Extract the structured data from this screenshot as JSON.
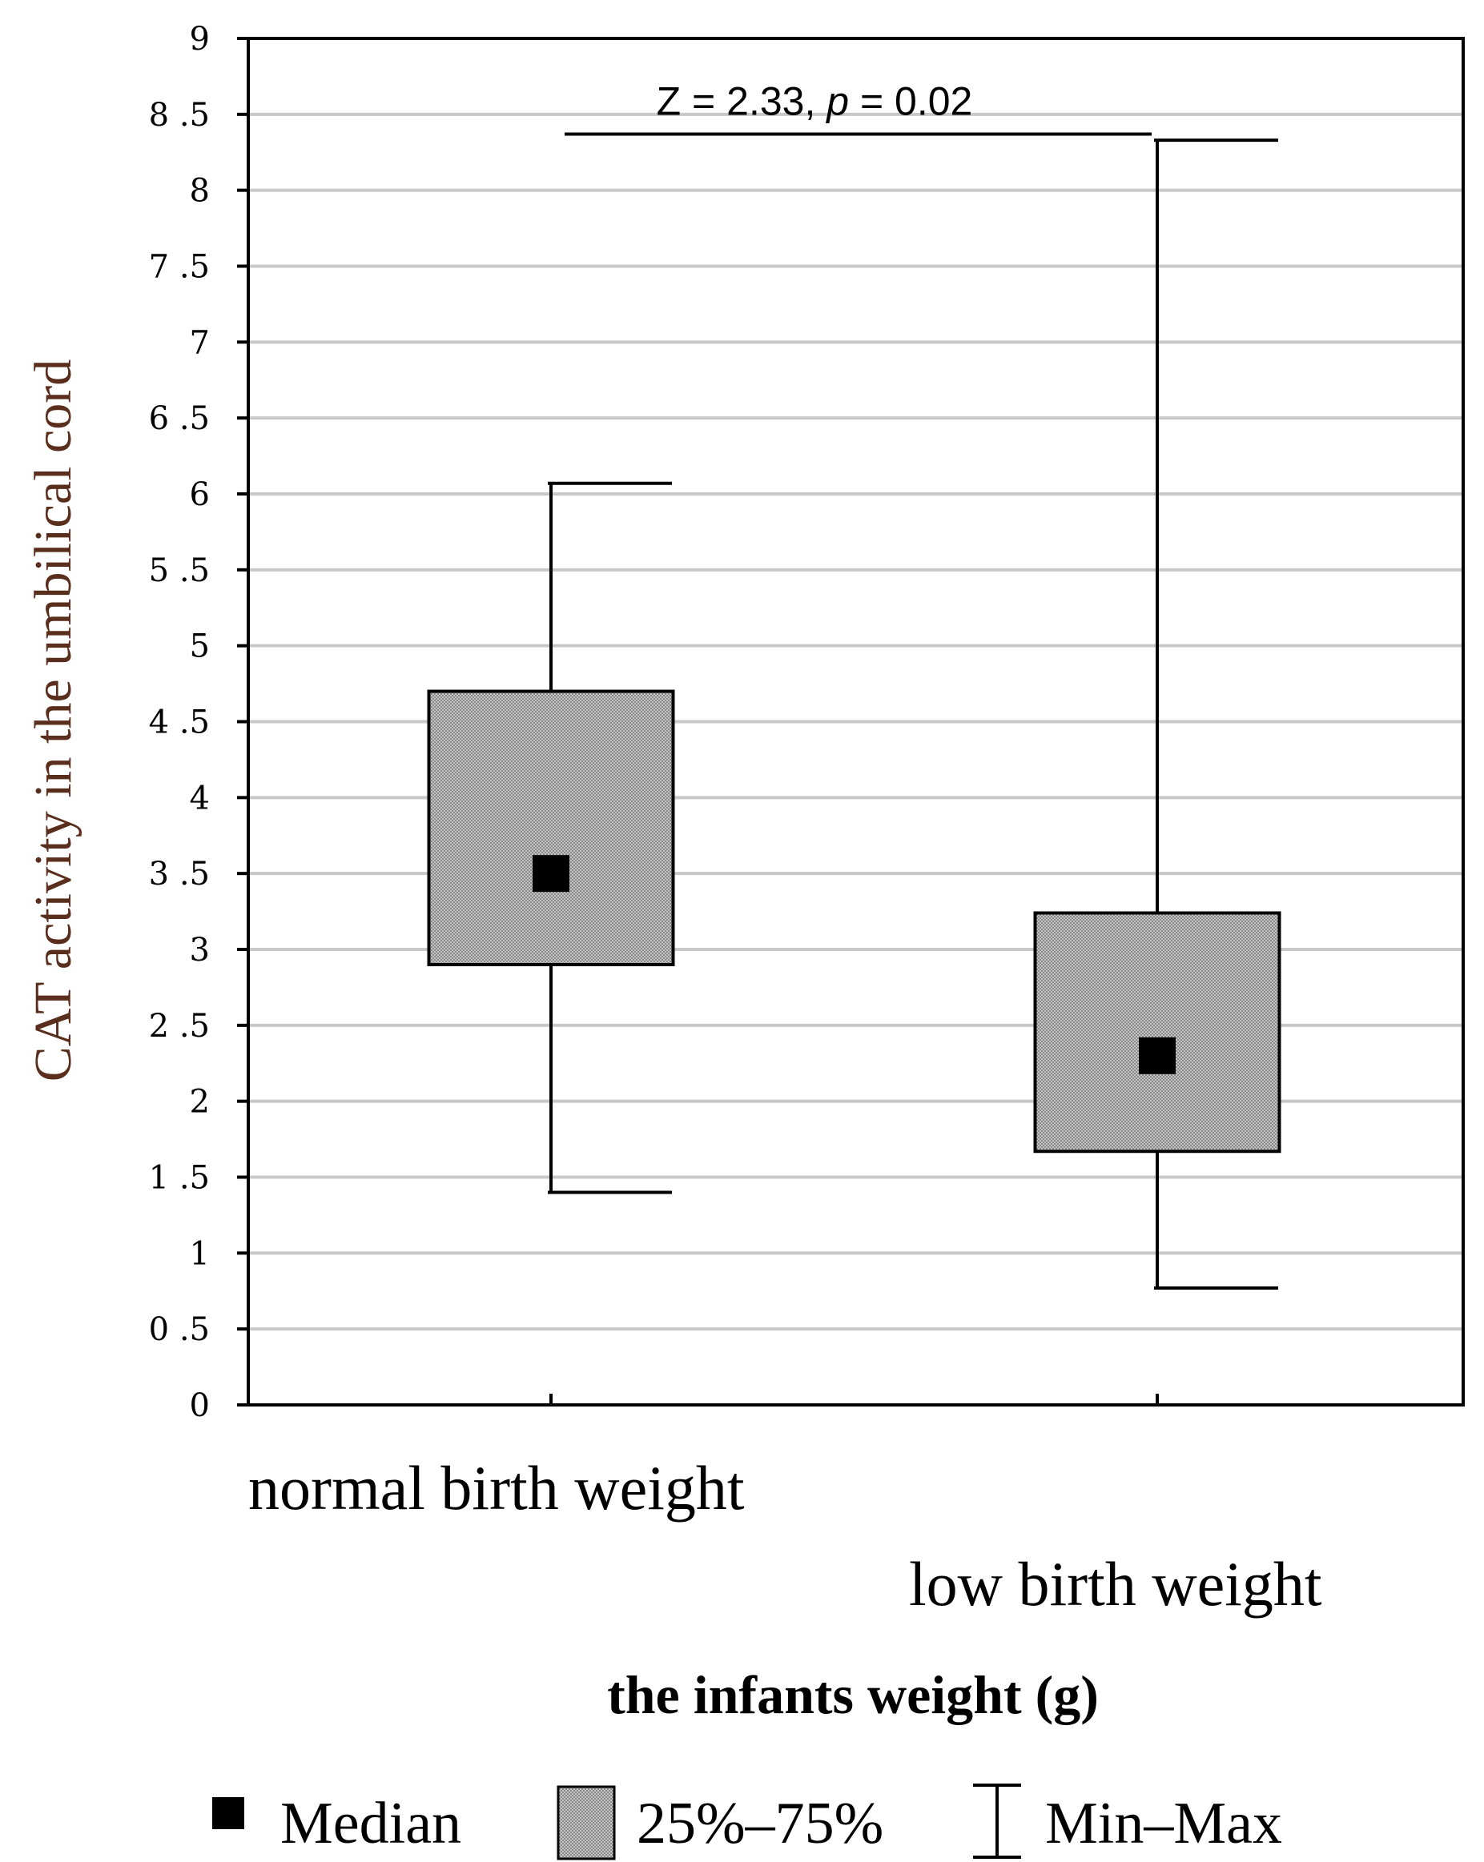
{
  "chart_data": {
    "type": "box",
    "ylabel": "CAT activity in the umbilical cord",
    "xlabel": "the infants weight (g)",
    "ylim": [
      0,
      9
    ],
    "yticks": [
      {
        "value": 0,
        "label": "0"
      },
      {
        "value": 0.5,
        "label": "0 .5"
      },
      {
        "value": 1,
        "label": "1"
      },
      {
        "value": 1.5,
        "label": "1 .5"
      },
      {
        "value": 2,
        "label": "2"
      },
      {
        "value": 2.5,
        "label": "2 .5"
      },
      {
        "value": 3,
        "label": "3"
      },
      {
        "value": 3.5,
        "label": "3 .5"
      },
      {
        "value": 4,
        "label": "4"
      },
      {
        "value": 4.5,
        "label": "4 .5"
      },
      {
        "value": 5,
        "label": "5"
      },
      {
        "value": 5.5,
        "label": "5 .5"
      },
      {
        "value": 6,
        "label": "6"
      },
      {
        "value": 6.5,
        "label": "6 .5"
      },
      {
        "value": 7,
        "label": "7"
      },
      {
        "value": 7.5,
        "label": "7 .5"
      },
      {
        "value": 8,
        "label": "8"
      },
      {
        "value": 8.5,
        "label": "8 .5"
      },
      {
        "value": 9,
        "label": "9"
      }
    ],
    "grid": true,
    "categories": [
      "normal birth weight",
      "low birth weight"
    ],
    "boxes": [
      {
        "category": "normal birth weight",
        "min": 1.4,
        "q1": 2.9,
        "median": 3.5,
        "q3": 4.7,
        "max": 6.07
      },
      {
        "category": "low birth weight",
        "min": 0.77,
        "q1": 1.67,
        "median": 2.3,
        "q3": 3.24,
        "max": 8.33
      }
    ],
    "annotation": {
      "prefix": "Z = 2.33, ",
      "p_symbol": "p",
      "suffix": " = 0.02",
      "bracket_y": 8.37
    },
    "legend": {
      "position": "bottom",
      "items": [
        {
          "marker": "median-square",
          "label": "Median"
        },
        {
          "marker": "hatched-box",
          "label": "25%–75%"
        },
        {
          "marker": "whisker",
          "label": "Min–Max"
        }
      ]
    }
  },
  "colors": {
    "axis": "#000000",
    "grid": "#c8c8c8",
    "box_fill": "#b4b4b4",
    "box_dot": "#6e6e6e",
    "median": "#000000",
    "ylabel": "#5a2e1c"
  }
}
